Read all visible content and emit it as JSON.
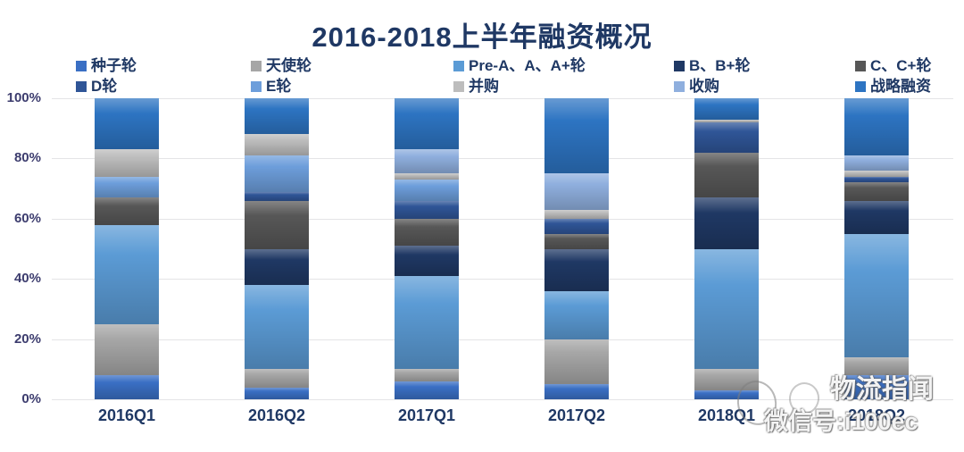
{
  "title": "2016-2018上半年融资概况",
  "watermark": {
    "line1": "物流指闻",
    "line2": "微信号:i100ec"
  },
  "chart_data": {
    "type": "bar",
    "subtype": "stacked-percent",
    "title": "2016-2018上半年融资概况",
    "xlabel": "",
    "ylabel": "",
    "ylim": [
      0,
      100
    ],
    "y_ticks": [
      "0%",
      "20%",
      "40%",
      "60%",
      "80%",
      "100%"
    ],
    "grid": true,
    "legend_position": "top",
    "categories": [
      "2016Q1",
      "2016Q2",
      "2017Q1",
      "2017Q2",
      "2018Q1",
      "2018Q2"
    ],
    "series": [
      {
        "name": "种子轮",
        "color": "#3A6FC4",
        "values": [
          8,
          4,
          6,
          5,
          3,
          8
        ]
      },
      {
        "name": "天使轮",
        "color": "#A6A6A6",
        "values": [
          17,
          6,
          4,
          15,
          7,
          6
        ]
      },
      {
        "name": "Pre-A、A、A+轮",
        "color": "#5B9BD5",
        "values": [
          33,
          28,
          31,
          16,
          40,
          41
        ]
      },
      {
        "name": "B、B+轮",
        "color": "#1F3864",
        "values": [
          0,
          12,
          10,
          14,
          17,
          11
        ]
      },
      {
        "name": "C、C+轮",
        "color": "#575757",
        "values": [
          9,
          16,
          9,
          5,
          15,
          6
        ]
      },
      {
        "name": "D轮",
        "color": "#2F5597",
        "values": [
          0,
          3,
          6,
          5,
          10,
          2
        ]
      },
      {
        "name": "E轮",
        "color": "#6D9EDB",
        "values": [
          7,
          12,
          7,
          0,
          0,
          0
        ]
      },
      {
        "name": "并购",
        "color": "#BDBDBD",
        "values": [
          9,
          7,
          2,
          3,
          1,
          2
        ]
      },
      {
        "name": "收购",
        "color": "#8FAFDE",
        "values": [
          0,
          0,
          8,
          12,
          0,
          5
        ]
      },
      {
        "name": "战略融资",
        "color": "#2D74C2",
        "values": [
          17,
          12,
          17,
          25,
          7,
          19
        ]
      }
    ]
  },
  "layout_note": "values are percent of quarterly financing events by round"
}
